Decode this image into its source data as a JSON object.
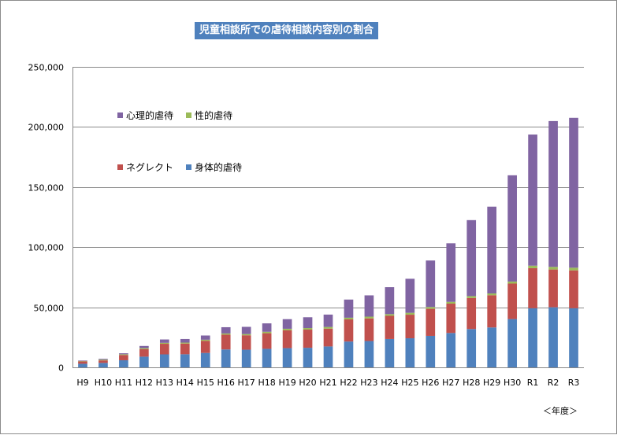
{
  "chart_data": {
    "type": "bar",
    "stacked": true,
    "title": "児童相談所での虐待相談内容別の割合",
    "xlabel": "＜年度＞",
    "ylabel": "",
    "ylim": [
      0,
      250000
    ],
    "yticks": [
      0,
      50000,
      100000,
      150000,
      200000,
      250000
    ],
    "ytick_labels": [
      "0",
      "50,000",
      "100,000",
      "150,000",
      "200,000",
      "250,000"
    ],
    "grid": true,
    "legend_position": "top-left",
    "categories": [
      "H9",
      "H10",
      "H11",
      "H12",
      "H13",
      "H14",
      "H15",
      "H16",
      "H17",
      "H18",
      "H19",
      "H20",
      "H21",
      "H22",
      "H23",
      "H24",
      "H25",
      "H26",
      "H27",
      "H28",
      "H29",
      "H30",
      "R1",
      "R2",
      "R3"
    ],
    "series": [
      {
        "name": "身体的虐待",
        "color": "#4f81bd",
        "values": [
          3000,
          3700,
          5900,
          8900,
          10800,
          10900,
          12000,
          14900,
          14700,
          15400,
          16000,
          16300,
          17400,
          21500,
          21900,
          23600,
          24200,
          26200,
          28600,
          31900,
          33200,
          40200,
          49200,
          50000,
          49200
        ]
      },
      {
        "name": "ネグレクト",
        "color": "#c0504d",
        "values": [
          2000,
          2100,
          4400,
          6300,
          8800,
          8900,
          10100,
          12300,
          12000,
          13000,
          14800,
          15100,
          14800,
          18400,
          18800,
          19300,
          19600,
          22500,
          24400,
          25800,
          26800,
          29500,
          33300,
          31400,
          31500
        ]
      },
      {
        "name": "性的虐待",
        "color": "#9bbb59",
        "values": [
          300,
          600,
          600,
          800,
          800,
          800,
          900,
          1000,
          1000,
          1200,
          1300,
          1300,
          1400,
          1400,
          1500,
          1400,
          1600,
          1500,
          1500,
          1600,
          1500,
          1700,
          2100,
          2200,
          2200
        ]
      },
      {
        "name": "心理的虐待",
        "color": "#8064a2",
        "values": [
          400,
          700,
          800,
          1800,
          2800,
          3000,
          3500,
          5200,
          6000,
          7000,
          8000,
          9000,
          10300,
          15100,
          17700,
          22400,
          28300,
          38700,
          48700,
          63200,
          72200,
          88400,
          109100,
          121300,
          124700
        ]
      }
    ]
  }
}
